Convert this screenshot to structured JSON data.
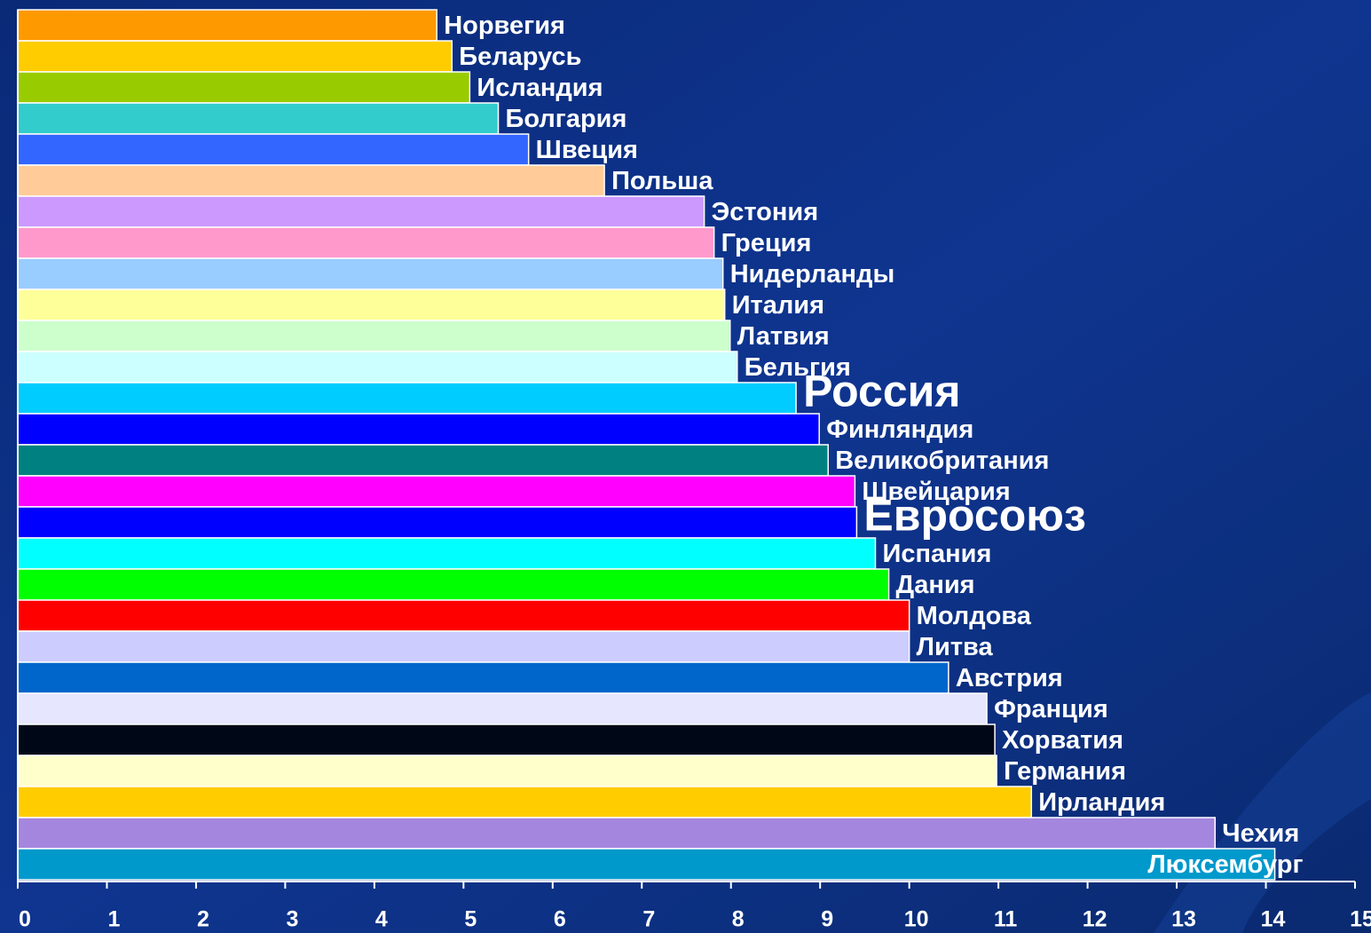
{
  "chart_data": {
    "type": "barh",
    "categories": [
      "Норвегия",
      "Беларусь",
      "Исландия",
      "Болгария",
      "Швеция",
      "Польша",
      "Эстония",
      "Греция",
      "Нидерланды",
      "Италия",
      "Латвия",
      "Бельгия",
      "Россия",
      "Финляндия",
      "Великобритания",
      "Швейцария",
      "Евросоюз",
      "Испания",
      "Дания",
      "Молдова",
      "Литва",
      "Австрия",
      "Франция",
      "Хорватия",
      "Германия",
      "Ирландия",
      "Чехия",
      "Люксембург"
    ],
    "values": [
      4.7,
      4.87,
      5.07,
      5.39,
      5.73,
      6.58,
      7.7,
      7.81,
      7.91,
      7.93,
      7.99,
      8.07,
      8.73,
      8.99,
      9.09,
      9.39,
      9.41,
      9.62,
      9.77,
      10.0,
      10.0,
      10.44,
      10.87,
      10.96,
      10.98,
      11.37,
      13.43,
      14.1
    ],
    "colors": [
      "#ff9900",
      "#ffcc00",
      "#99cc00",
      "#33cccc",
      "#3366ff",
      "#ffcc99",
      "#cc99ff",
      "#ff99cc",
      "#99ccff",
      "#ffff99",
      "#ccffcc",
      "#ccffff",
      "#00ccff",
      "#0000ff",
      "#008080",
      "#ff00ff",
      "#0000ff",
      "#00ffff",
      "#00ff00",
      "#ff0000",
      "#ccccff",
      "#0066cc",
      "#e6e6ff",
      "#000818",
      "#ffffcc",
      "#ffcc00",
      "#a586de",
      "#0099cc"
    ],
    "highlighted": [
      12,
      16
    ],
    "xlim": [
      0,
      15
    ],
    "xticks": [
      0,
      1,
      2,
      3,
      4,
      5,
      6,
      7,
      8,
      9,
      10,
      11,
      12,
      13,
      14,
      15
    ]
  }
}
